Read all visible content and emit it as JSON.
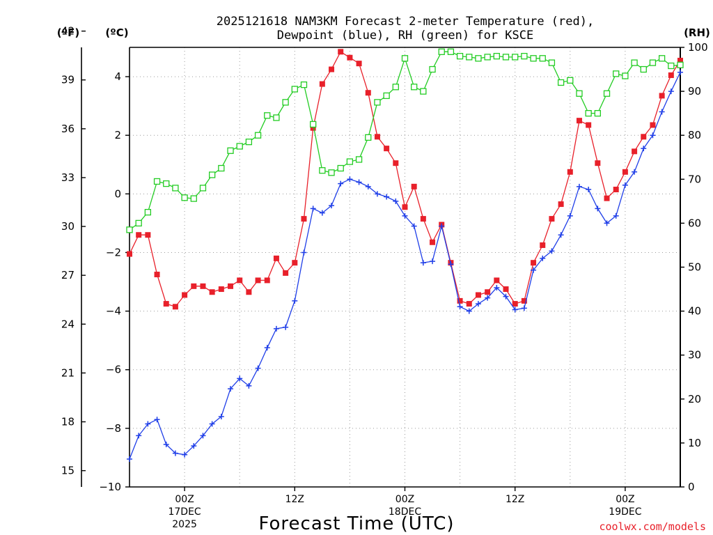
{
  "chart_data": {
    "type": "line",
    "title_line1": "2025121618 NAM3KM Forecast 2-meter Temperature (red),",
    "title_line2": "Dewpoint (blue), RH (green) for KSCE",
    "xlabel": "Forecast Time (UTC)",
    "credit": "coolwx.com/models",
    "units": {
      "fahrenheit": "(ºF)",
      "celsius": "(ºC)",
      "rh": "(RH)"
    },
    "x_range_hours": [
      0,
      60
    ],
    "celsius_range": [
      -10,
      5
    ],
    "rh_range": [
      0,
      100
    ],
    "fahrenheit_ticks": [
      "42",
      "39",
      "36",
      "33",
      "30",
      "27",
      "24",
      "21",
      "18",
      "15"
    ],
    "fahrenheit_values": [
      42,
      39,
      36,
      33,
      30,
      27,
      24,
      21,
      18,
      15
    ],
    "celsius_ticks": [
      "4",
      "2",
      "0",
      "−2",
      "−4",
      "−6",
      "−8",
      "−10"
    ],
    "celsius_values": [
      4,
      2,
      0,
      -2,
      -4,
      -6,
      -8,
      -10
    ],
    "rh_ticks": [
      "100",
      "90",
      "80",
      "70",
      "60",
      "50",
      "40",
      "30",
      "20",
      "10",
      "0"
    ],
    "rh_values": [
      100,
      90,
      80,
      70,
      60,
      50,
      40,
      30,
      20,
      10,
      0
    ],
    "x_ticks": [
      {
        "hour": 6,
        "lines": [
          "00Z",
          "17DEC",
          "2025"
        ]
      },
      {
        "hour": 18,
        "lines": [
          "12Z"
        ]
      },
      {
        "hour": 30,
        "lines": [
          "00Z",
          "18DEC"
        ]
      },
      {
        "hour": 42,
        "lines": [
          "12Z"
        ]
      },
      {
        "hour": 54,
        "lines": [
          "00Z",
          "19DEC"
        ]
      }
    ],
    "series": [
      {
        "name": "Temperature",
        "unit": "C",
        "color": "#e8202a",
        "marker": "filled-square",
        "values": [
          -2.05,
          -1.4,
          -1.4,
          -2.75,
          -3.75,
          -3.85,
          -3.45,
          -3.15,
          -3.15,
          -3.35,
          -3.25,
          -3.15,
          -2.95,
          -3.35,
          -2.95,
          -2.95,
          -2.2,
          -2.7,
          -2.35,
          -0.85,
          2.25,
          3.75,
          4.25,
          4.85,
          4.65,
          4.45,
          3.45,
          1.95,
          1.55,
          1.05,
          -0.45,
          0.25,
          -0.85,
          -1.65,
          -1.05,
          -2.35,
          -3.65,
          -3.75,
          -3.45,
          -3.35,
          -2.95,
          -3.25,
          -3.75,
          -3.65,
          -2.35,
          -1.75,
          -0.85,
          -0.35,
          0.75,
          2.5,
          2.35,
          1.05,
          -0.15,
          0.15,
          0.75,
          1.45,
          1.95,
          2.35,
          3.35,
          4.05,
          4.55
        ]
      },
      {
        "name": "Dewpoint",
        "unit": "C",
        "color": "#1f3ee8",
        "marker": "plus",
        "values": [
          -9.05,
          -8.25,
          -7.85,
          -7.7,
          -8.55,
          -8.85,
          -8.9,
          -8.6,
          -8.25,
          -7.85,
          -7.6,
          -6.65,
          -6.3,
          -6.55,
          -5.95,
          -5.25,
          -4.6,
          -4.55,
          -3.65,
          -2.0,
          -0.5,
          -0.65,
          -0.4,
          0.35,
          0.5,
          0.4,
          0.25,
          0.0,
          -0.1,
          -0.25,
          -0.75,
          -1.1,
          -2.35,
          -2.3,
          -1.1,
          -2.4,
          -3.85,
          -4.0,
          -3.75,
          -3.55,
          -3.2,
          -3.5,
          -3.95,
          -3.9,
          -2.6,
          -2.2,
          -1.95,
          -1.4,
          -0.75,
          0.25,
          0.15,
          -0.5,
          -1.0,
          -0.75,
          0.3,
          0.75,
          1.55,
          2.0,
          2.8,
          3.5,
          4.15
        ]
      },
      {
        "name": "RH",
        "unit": "%",
        "color": "#22cc22",
        "marker": "open-square",
        "values": [
          58.5,
          60.0,
          62.5,
          69.5,
          69.0,
          68.0,
          65.8,
          65.6,
          68.0,
          71.0,
          72.5,
          76.5,
          77.5,
          78.5,
          80.0,
          84.5,
          84.0,
          87.5,
          90.5,
          91.5,
          82.5,
          72.0,
          71.5,
          72.5,
          74.0,
          74.5,
          79.5,
          87.5,
          89.0,
          91.0,
          97.5,
          91.0,
          90.0,
          95.0,
          99.0,
          99.0,
          98.0,
          97.8,
          97.5,
          97.8,
          98.0,
          97.8,
          97.8,
          98.0,
          97.5,
          97.5,
          96.5,
          92.0,
          92.5,
          89.5,
          85.0,
          85.0,
          89.5,
          94.0,
          93.5,
          96.5,
          95.0,
          96.5,
          97.5,
          95.8,
          96.0
        ]
      }
    ]
  }
}
